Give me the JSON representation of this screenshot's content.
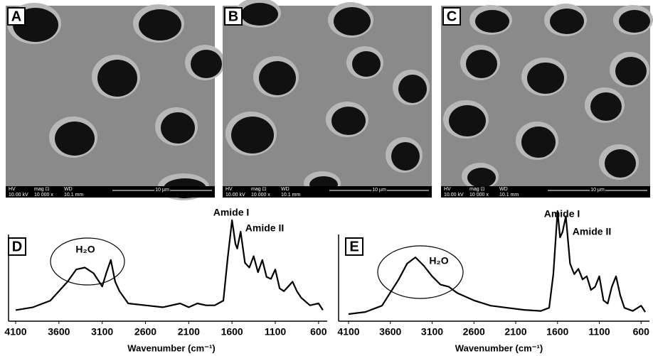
{
  "panels": [
    {
      "label": "A",
      "hv_label": "HV",
      "hv": "10.00 kV",
      "mag_label": "mag ⊡",
      "mag": "10 000 x",
      "wd_label": "WD",
      "wd": "10.1 mm",
      "scale": "10 µm"
    },
    {
      "label": "B",
      "hv_label": "HV",
      "hv": "10.00 kV",
      "mag_label": "mag ⊡",
      "mag": "10 000 x",
      "wd_label": "WD",
      "wd": "10.1 mm",
      "scale": "10 µm"
    },
    {
      "label": "C",
      "hv_label": "HV",
      "hv": "10.00 kV",
      "mag_label": "mag ⊡",
      "mag": "10 000 x",
      "wd_label": "WD",
      "wd": "10.1 mm",
      "scale": "10 µm"
    }
  ],
  "chart_data": [
    {
      "type": "line",
      "panel_label": "D",
      "x_label": "Wavenumber (cm⁻¹)",
      "annotations": [
        "Amide I",
        "Amide II",
        "H₂O"
      ],
      "xlim": [
        4100,
        500
      ],
      "xticks": [
        4100,
        3600,
        3100,
        2600,
        2100,
        1600,
        1100,
        600
      ],
      "ylim": [
        0,
        100
      ],
      "color": "#000000",
      "x": [
        4100,
        3900,
        3700,
        3500,
        3400,
        3300,
        3200,
        3100,
        3050,
        3000,
        2950,
        2900,
        2800,
        2600,
        2400,
        2200,
        2100,
        2000,
        1900,
        1800,
        1700,
        1650,
        1600,
        1560,
        1540,
        1500,
        1450,
        1400,
        1350,
        1300,
        1250,
        1200,
        1150,
        1100,
        1050,
        1000,
        950,
        900,
        850,
        800,
        700,
        600,
        550
      ],
      "values": [
        5,
        8,
        15,
        35,
        48,
        50,
        44,
        30,
        45,
        58,
        35,
        25,
        12,
        10,
        8,
        12,
        8,
        12,
        10,
        10,
        15,
        60,
        100,
        75,
        70,
        88,
        55,
        50,
        62,
        45,
        58,
        40,
        38,
        48,
        28,
        25,
        30,
        35,
        25,
        18,
        10,
        12,
        5
      ]
    },
    {
      "type": "line",
      "panel_label": "E",
      "x_label": "Wavenumber (cm⁻¹)",
      "annotations": [
        "Amide I",
        "Amide II",
        "H₂O"
      ],
      "xlim": [
        4100,
        500
      ],
      "xticks": [
        4100,
        3600,
        3100,
        2600,
        2100,
        1600,
        1100,
        600
      ],
      "ylim": [
        0,
        100
      ],
      "color": "#000000",
      "x": [
        4100,
        3900,
        3700,
        3500,
        3400,
        3300,
        3200,
        3100,
        3000,
        2900,
        2800,
        2600,
        2400,
        2200,
        2000,
        1800,
        1700,
        1650,
        1600,
        1570,
        1540,
        1500,
        1450,
        1400,
        1350,
        1300,
        1250,
        1200,
        1150,
        1100,
        1050,
        1000,
        950,
        900,
        850,
        800,
        700,
        600,
        550
      ],
      "values": [
        2,
        4,
        10,
        35,
        50,
        56,
        48,
        38,
        30,
        28,
        22,
        15,
        10,
        8,
        6,
        5,
        8,
        40,
        100,
        75,
        80,
        95,
        50,
        40,
        45,
        35,
        38,
        25,
        28,
        38,
        15,
        12,
        28,
        38,
        20,
        8,
        5,
        10,
        4
      ]
    }
  ]
}
